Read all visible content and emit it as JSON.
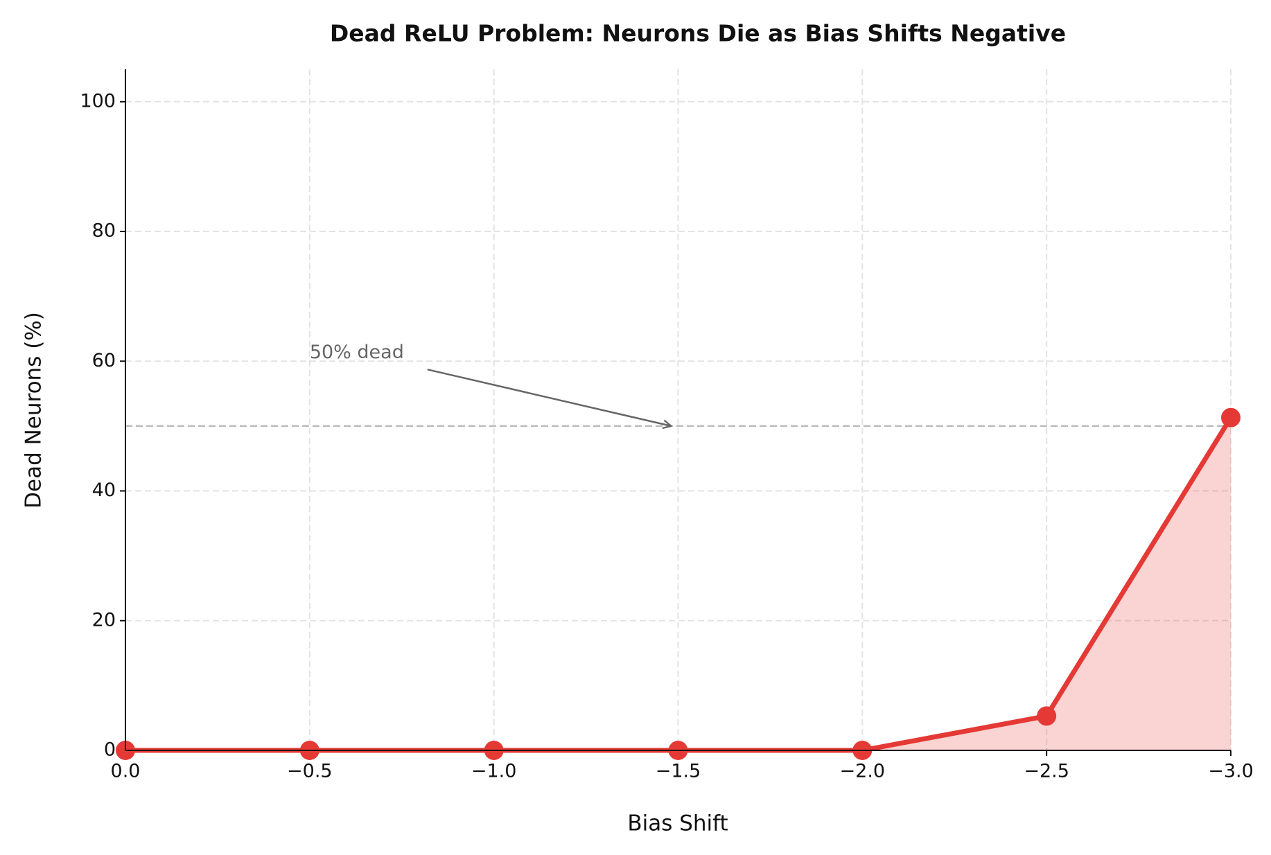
{
  "chart_data": {
    "type": "line",
    "title": "Dead ReLU Problem: Neurons Die as Bias Shifts Negative",
    "x_label": "Bias Shift",
    "y_label": "Dead Neurons (%)",
    "x": [
      0,
      -0.5,
      -1,
      -1.5,
      -2,
      -2.5,
      -3
    ],
    "series": [
      {
        "name": "Dead Neurons",
        "color": "#e53935",
        "values": [
          0,
          0,
          0,
          0,
          0,
          5.3,
          51.3
        ]
      }
    ],
    "fill": true,
    "xlim": [
      0,
      -3
    ],
    "ylim": [
      0,
      105
    ],
    "xticks": [
      {
        "value": 0,
        "label": "0.0"
      },
      {
        "value": -0.5,
        "label": "−0.5"
      },
      {
        "value": -1,
        "label": "−1.0"
      },
      {
        "value": -1.5,
        "label": "−1.5"
      },
      {
        "value": -2,
        "label": "−2.0"
      },
      {
        "value": -2.5,
        "label": "−2.5"
      },
      {
        "value": -3,
        "label": "−3.0"
      }
    ],
    "yticks": [
      0,
      20,
      40,
      60,
      80,
      100
    ],
    "grid": true,
    "hlines": [
      {
        "y": 50,
        "color": "#bbbbbb"
      }
    ],
    "annotations": [
      {
        "text": "50% dead",
        "x": -0.5,
        "y": 60,
        "arrow_x": -1.5,
        "arrow_y": 50
      }
    ]
  }
}
